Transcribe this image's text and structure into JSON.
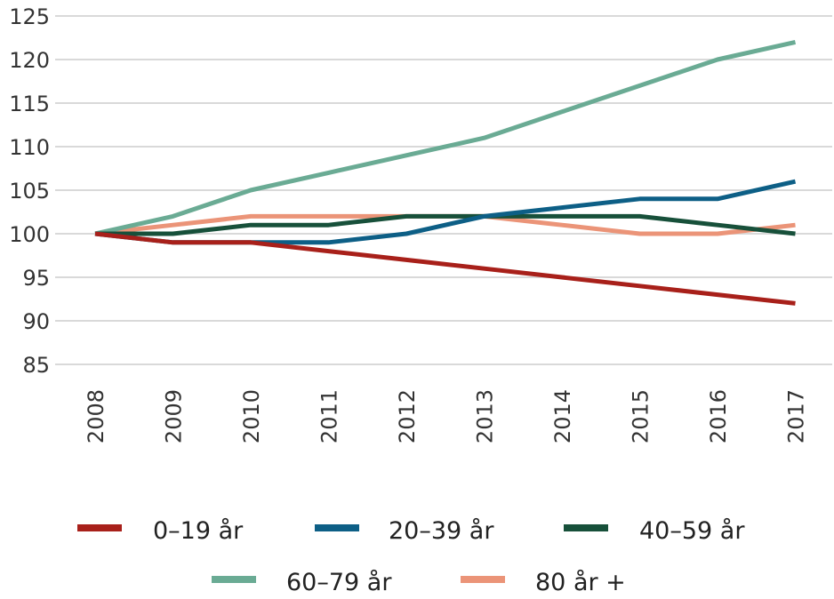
{
  "chart_data": {
    "type": "line",
    "x": [
      "2008",
      "2009",
      "2010",
      "2011",
      "2012",
      "2013",
      "2014",
      "2015",
      "2016",
      "2017"
    ],
    "ylim": [
      85,
      125
    ],
    "yticks": [
      85,
      90,
      95,
      100,
      105,
      110,
      115,
      120,
      125
    ],
    "grid": "horizontal",
    "legend_position": "bottom",
    "series": [
      {
        "name": "0–19 år",
        "color": "#a8201a",
        "values": [
          100,
          99,
          99,
          98,
          97,
          96,
          95,
          94,
          93,
          92
        ]
      },
      {
        "name": "20–39 år",
        "color": "#0d5f86",
        "values": [
          100,
          99,
          99,
          99,
          100,
          102,
          103,
          104,
          104,
          106
        ]
      },
      {
        "name": "40–59 år",
        "color": "#17503a",
        "values": [
          100,
          100,
          101,
          101,
          102,
          102,
          102,
          102,
          101,
          100
        ]
      },
      {
        "name": "60–79 år",
        "color": "#6aab94",
        "values": [
          100,
          102,
          105,
          107,
          109,
          111,
          114,
          117,
          120,
          122
        ]
      },
      {
        "name": "80 år +",
        "color": "#eb9478",
        "values": [
          100,
          101,
          102,
          102,
          102,
          102,
          101,
          100,
          100,
          101
        ]
      }
    ]
  }
}
